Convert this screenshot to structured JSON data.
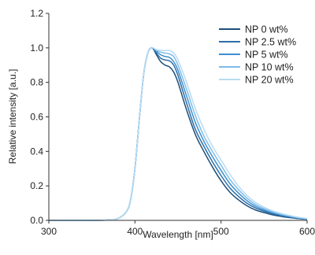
{
  "chart_data": {
    "type": "line",
    "xlabel": "Wavelength [nm]",
    "ylabel": "Relative intensity [a.u.]",
    "xlim": [
      300,
      600
    ],
    "ylim": [
      0.0,
      1.2
    ],
    "x_ticks": [
      "300",
      "400",
      "500",
      "600"
    ],
    "y_ticks": [
      "0.0",
      "0.2",
      "0.4",
      "0.6",
      "0.8",
      "1.0",
      "1.2"
    ],
    "legend_position": "top-right",
    "grid": false,
    "series": [
      {
        "name": "NP 0 wt%",
        "color": "#1d4f7a",
        "x": [
          300,
          350,
          370,
          380,
          390,
          395,
          400,
          405,
          410,
          415,
          420,
          425,
          430,
          435,
          440,
          445,
          450,
          460,
          470,
          480,
          490,
          500,
          510,
          520,
          530,
          540,
          550,
          560,
          570,
          580,
          590,
          600
        ],
        "y": [
          0,
          0,
          0.002,
          0.01,
          0.05,
          0.12,
          0.3,
          0.58,
          0.84,
          0.97,
          1.0,
          0.96,
          0.92,
          0.9,
          0.89,
          0.86,
          0.8,
          0.64,
          0.5,
          0.4,
          0.31,
          0.23,
          0.165,
          0.12,
          0.085,
          0.06,
          0.045,
          0.032,
          0.023,
          0.016,
          0.01,
          0.006
        ]
      },
      {
        "name": "NP 2.5 wt%",
        "color": "#2d6ea8",
        "x": [
          300,
          350,
          370,
          380,
          390,
          395,
          400,
          405,
          410,
          415,
          420,
          425,
          430,
          435,
          440,
          445,
          450,
          460,
          470,
          480,
          490,
          500,
          510,
          520,
          530,
          540,
          550,
          560,
          570,
          580,
          590,
          600
        ],
        "y": [
          0,
          0,
          0.002,
          0.01,
          0.05,
          0.12,
          0.3,
          0.58,
          0.84,
          0.97,
          1.0,
          0.97,
          0.94,
          0.93,
          0.925,
          0.9,
          0.84,
          0.68,
          0.53,
          0.43,
          0.34,
          0.26,
          0.19,
          0.14,
          0.1,
          0.072,
          0.053,
          0.038,
          0.027,
          0.019,
          0.012,
          0.007
        ]
      },
      {
        "name": "NP 5 wt%",
        "color": "#3d8fd0",
        "x": [
          300,
          350,
          370,
          380,
          390,
          395,
          400,
          405,
          410,
          415,
          420,
          425,
          430,
          435,
          440,
          445,
          450,
          460,
          470,
          480,
          490,
          500,
          510,
          520,
          530,
          540,
          550,
          560,
          570,
          580,
          590,
          600
        ],
        "y": [
          0,
          0,
          0.002,
          0.01,
          0.05,
          0.12,
          0.3,
          0.58,
          0.84,
          0.97,
          1.0,
          0.98,
          0.96,
          0.95,
          0.945,
          0.92,
          0.87,
          0.72,
          0.57,
          0.46,
          0.37,
          0.29,
          0.215,
          0.16,
          0.115,
          0.082,
          0.06,
          0.043,
          0.031,
          0.022,
          0.014,
          0.008
        ]
      },
      {
        "name": "NP 10 wt%",
        "color": "#7ebde8",
        "x": [
          300,
          350,
          370,
          380,
          390,
          395,
          400,
          405,
          410,
          415,
          420,
          425,
          430,
          435,
          440,
          445,
          450,
          460,
          470,
          480,
          490,
          500,
          510,
          520,
          530,
          540,
          550,
          560,
          570,
          580,
          590,
          600
        ],
        "y": [
          0,
          0,
          0.002,
          0.01,
          0.05,
          0.12,
          0.3,
          0.58,
          0.84,
          0.97,
          1.0,
          0.985,
          0.975,
          0.97,
          0.965,
          0.95,
          0.9,
          0.76,
          0.61,
          0.49,
          0.4,
          0.32,
          0.24,
          0.18,
          0.13,
          0.093,
          0.068,
          0.049,
          0.035,
          0.025,
          0.016,
          0.009
        ]
      },
      {
        "name": "NP 20 wt%",
        "color": "#b9dcf3",
        "x": [
          300,
          350,
          370,
          380,
          390,
          395,
          400,
          405,
          410,
          415,
          420,
          425,
          430,
          435,
          440,
          445,
          450,
          460,
          470,
          480,
          490,
          500,
          510,
          520,
          530,
          540,
          550,
          560,
          570,
          580,
          590,
          600
        ],
        "y": [
          0,
          0,
          0.002,
          0.01,
          0.05,
          0.12,
          0.3,
          0.58,
          0.84,
          0.97,
          1.0,
          0.99,
          0.985,
          0.985,
          0.985,
          0.97,
          0.93,
          0.8,
          0.65,
          0.53,
          0.43,
          0.35,
          0.27,
          0.2,
          0.145,
          0.105,
          0.076,
          0.055,
          0.04,
          0.028,
          0.018,
          0.011
        ]
      }
    ]
  }
}
